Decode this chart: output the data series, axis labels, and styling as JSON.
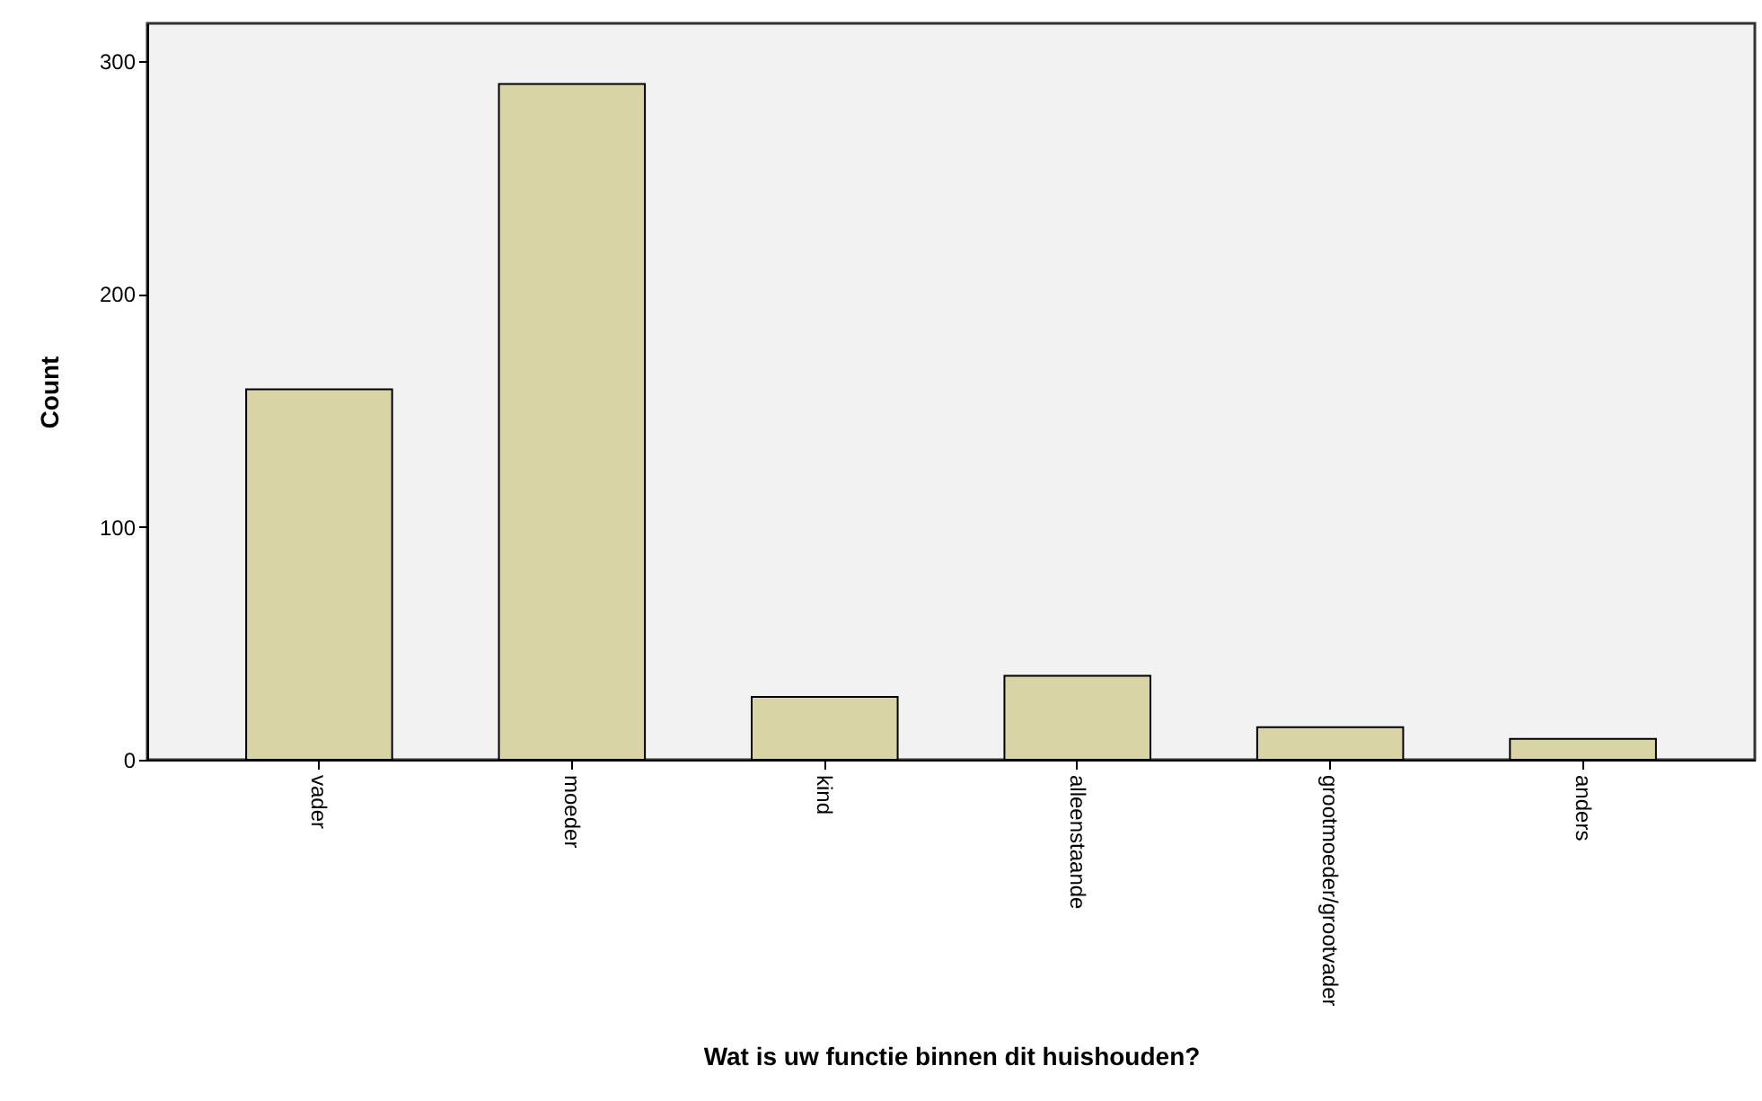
{
  "chart_data": {
    "type": "bar",
    "xlabel": "Wat is uw functie binnen dit huishouden?",
    "ylabel": "Count",
    "categories": [
      "vader",
      "moeder",
      "kind",
      "alleenstaande",
      "grootmoeder/grootvader",
      "anders"
    ],
    "values": [
      159,
      290,
      27,
      36,
      14,
      9
    ],
    "color": "#d9d4a6",
    "ylim": [
      0,
      316
    ],
    "yticks": [
      0,
      100,
      200,
      300
    ],
    "grid": false
  }
}
